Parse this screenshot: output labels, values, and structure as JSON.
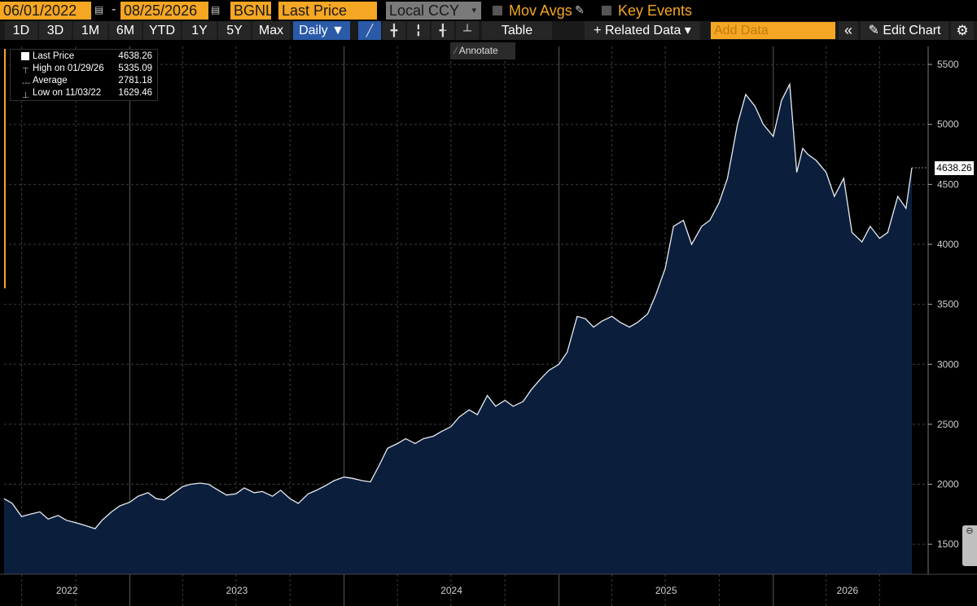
{
  "toolbar": {
    "start_date": "06/01/2022",
    "end_date": "08/25/2026",
    "ticker": "BGNL",
    "field": "Last Price",
    "currency": "Local CCY",
    "mov_avgs_label": "Mov Avgs",
    "key_events_label": "Key Events",
    "periods": [
      "1D",
      "3D",
      "1M",
      "6M",
      "YTD",
      "1Y",
      "5Y",
      "Max"
    ],
    "frequency": "Daily ▼",
    "table_label": "Table",
    "related_data_label": "+ Related Data ▾",
    "add_data_placeholder": "Add Data",
    "collapse_icon": "«",
    "edit_chart_label": "Edit Chart",
    "annotate_label": "Annotate",
    "scroll_tab_label": "⊖"
  },
  "legend": {
    "last_label": "Last Price",
    "last_value": "4638.26",
    "high_label": "High on 01/29/26",
    "high_value": "5335.09",
    "avg_label": "Average",
    "avg_value": "2781.18",
    "low_label": "Low on 11/03/22",
    "low_value": "1629.46"
  },
  "last_badge": "4638.26",
  "colors": {
    "accent_orange": "#f5a623",
    "active_blue": "#2a5aa8",
    "area_fill": "#0b1f3d",
    "line": "#e8ecf2"
  },
  "chart_data": {
    "type": "area",
    "title": "",
    "xlabel": "",
    "ylabel": "",
    "ylim": [
      1250,
      5650
    ],
    "yticks": [
      1500,
      2000,
      2500,
      3000,
      3500,
      4000,
      4500,
      5000,
      5500
    ],
    "xticks": [
      2022,
      2023,
      2024,
      2025,
      2026
    ],
    "grid": true,
    "series": [
      {
        "x": [
          "2022-06-01",
          "2022-06-15",
          "2022-07-01",
          "2022-07-15",
          "2022-08-01",
          "2022-08-15",
          "2022-09-01",
          "2022-09-15",
          "2022-10-01",
          "2022-10-15",
          "2022-11-03",
          "2022-11-15",
          "2022-12-01",
          "2022-12-15",
          "2023-01-01",
          "2023-01-15",
          "2023-02-01",
          "2023-02-15",
          "2023-03-01",
          "2023-03-15",
          "2023-04-01",
          "2023-04-15",
          "2023-05-01",
          "2023-05-15",
          "2023-06-01",
          "2023-06-15",
          "2023-07-01",
          "2023-07-15",
          "2023-08-01",
          "2023-08-15",
          "2023-09-01",
          "2023-09-15",
          "2023-10-01",
          "2023-10-15",
          "2023-11-01",
          "2023-11-15",
          "2023-12-01",
          "2023-12-15",
          "2024-01-01",
          "2024-01-15",
          "2024-02-01",
          "2024-02-15",
          "2024-03-01",
          "2024-03-15",
          "2024-04-01",
          "2024-04-15",
          "2024-05-01",
          "2024-05-15",
          "2024-06-01",
          "2024-06-15",
          "2024-07-01",
          "2024-07-15",
          "2024-08-01",
          "2024-08-15",
          "2024-09-01",
          "2024-09-15",
          "2024-10-01",
          "2024-10-15",
          "2024-11-01",
          "2024-11-15",
          "2024-12-01",
          "2024-12-15",
          "2025-01-01",
          "2025-01-15",
          "2025-02-01",
          "2025-02-15",
          "2025-03-01",
          "2025-03-15",
          "2025-04-01",
          "2025-04-15",
          "2025-05-01",
          "2025-05-15",
          "2025-06-01",
          "2025-06-15",
          "2025-07-01",
          "2025-07-15",
          "2025-08-01",
          "2025-08-15",
          "2025-09-01",
          "2025-09-15",
          "2025-10-01",
          "2025-10-15",
          "2025-11-01",
          "2025-11-15",
          "2025-12-01",
          "2025-12-15",
          "2026-01-01",
          "2026-01-15",
          "2026-01-29",
          "2026-02-10",
          "2026-02-20",
          "2026-03-01",
          "2026-03-15",
          "2026-04-01",
          "2026-04-15",
          "2026-05-01",
          "2026-05-15",
          "2026-06-01",
          "2026-06-15",
          "2026-07-01",
          "2026-07-15",
          "2026-08-01",
          "2026-08-15",
          "2026-08-25"
        ],
        "y": [
          1880,
          1840,
          1730,
          1750,
          1770,
          1710,
          1740,
          1700,
          1680,
          1660,
          1629.46,
          1700,
          1770,
          1820,
          1850,
          1900,
          1930,
          1880,
          1870,
          1920,
          1980,
          2000,
          2010,
          2000,
          1950,
          1910,
          1920,
          1970,
          1930,
          1940,
          1900,
          1950,
          1880,
          1840,
          1920,
          1950,
          1990,
          2030,
          2060,
          2050,
          2030,
          2020,
          2160,
          2300,
          2340,
          2380,
          2340,
          2380,
          2400,
          2440,
          2480,
          2560,
          2620,
          2580,
          2740,
          2650,
          2700,
          2650,
          2690,
          2790,
          2880,
          2950,
          3000,
          3100,
          3400,
          3380,
          3310,
          3360,
          3400,
          3350,
          3310,
          3350,
          3420,
          3580,
          3800,
          4150,
          4200,
          4000,
          4150,
          4200,
          4350,
          4550,
          5000,
          5250,
          5150,
          5000,
          4900,
          5200,
          5335.09,
          4600,
          4800,
          4750,
          4700,
          4600,
          4400,
          4550,
          4100,
          4020,
          4150,
          4050,
          4100,
          4400,
          4300,
          4638.26
        ]
      }
    ]
  }
}
